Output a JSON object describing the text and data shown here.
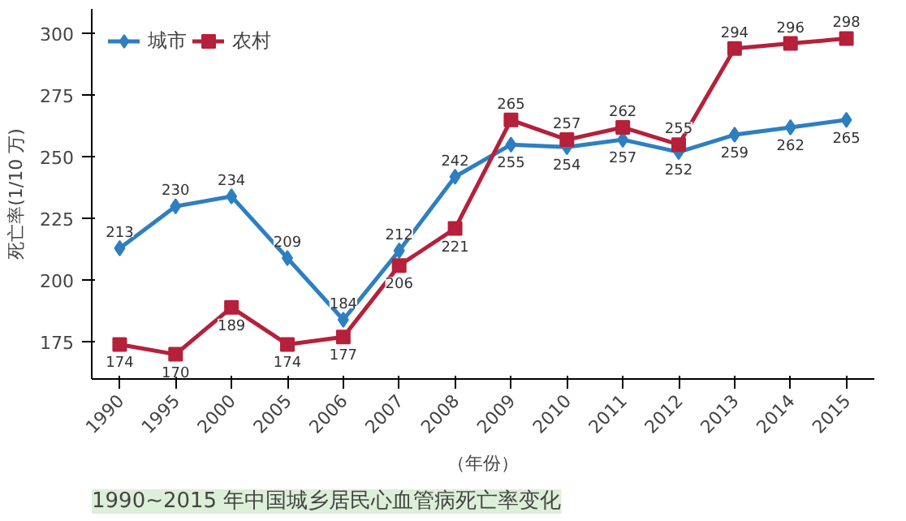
{
  "chart_data": {
    "type": "line",
    "title": "1990~2015 年中国城乡居民心血管病死亡率变化",
    "xlabel": "（年份）",
    "ylabel": "死亡率(1/10 万)",
    "categories": [
      "1990",
      "1995",
      "2000",
      "2005",
      "2006",
      "2007",
      "2008",
      "2009",
      "2010",
      "2011",
      "2012",
      "2013",
      "2014",
      "2015"
    ],
    "series": [
      {
        "name": "城市",
        "color": "#2e7fc0",
        "marker": "diamond",
        "values": [
          213,
          230,
          234,
          209,
          184,
          212,
          242,
          255,
          254,
          257,
          252,
          259,
          262,
          265
        ]
      },
      {
        "name": "农村",
        "color": "#b5203a",
        "marker": "square",
        "values": [
          174,
          170,
          189,
          174,
          177,
          206,
          221,
          265,
          257,
          262,
          255,
          294,
          296,
          298
        ]
      }
    ],
    "ylim": [
      160,
      310
    ],
    "yticks": [
      175,
      200,
      225,
      250,
      275,
      300
    ],
    "grid": false,
    "legend": "top left",
    "data_labels": true
  }
}
